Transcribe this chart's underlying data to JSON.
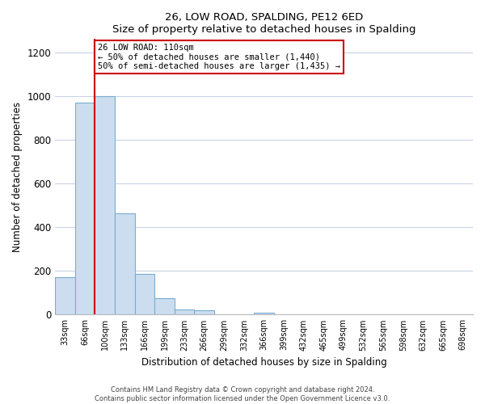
{
  "title": "26, LOW ROAD, SPALDING, PE12 6ED",
  "subtitle": "Size of property relative to detached houses in Spalding",
  "xlabel": "Distribution of detached houses by size in Spalding",
  "ylabel": "Number of detached properties",
  "bar_labels": [
    "33sqm",
    "66sqm",
    "100sqm",
    "133sqm",
    "166sqm",
    "199sqm",
    "233sqm",
    "266sqm",
    "299sqm",
    "332sqm",
    "366sqm",
    "399sqm",
    "432sqm",
    "465sqm",
    "499sqm",
    "532sqm",
    "565sqm",
    "598sqm",
    "632sqm",
    "665sqm",
    "698sqm"
  ],
  "bar_values": [
    170,
    970,
    1000,
    462,
    185,
    75,
    25,
    20,
    0,
    0,
    10,
    0,
    0,
    0,
    0,
    0,
    0,
    0,
    0,
    0,
    0
  ],
  "bar_color": "#ccddf0",
  "bar_edge_color": "#7aadcf",
  "vline_x": 1.5,
  "vline_color": "#cc0000",
  "annotation_title": "26 LOW ROAD: 110sqm",
  "annotation_line1": "← 50% of detached houses are smaller (1,440)",
  "annotation_line2": "50% of semi-detached houses are larger (1,435) →",
  "annotation_box_edge": "#cc0000",
  "ylim": [
    0,
    1260
  ],
  "yticks": [
    0,
    200,
    400,
    600,
    800,
    1000,
    1200
  ],
  "footer1": "Contains HM Land Registry data © Crown copyright and database right 2024.",
  "footer2": "Contains public sector information licensed under the Open Government Licence v3.0.",
  "background_color": "#ffffff",
  "grid_color": "#c8d4e8"
}
